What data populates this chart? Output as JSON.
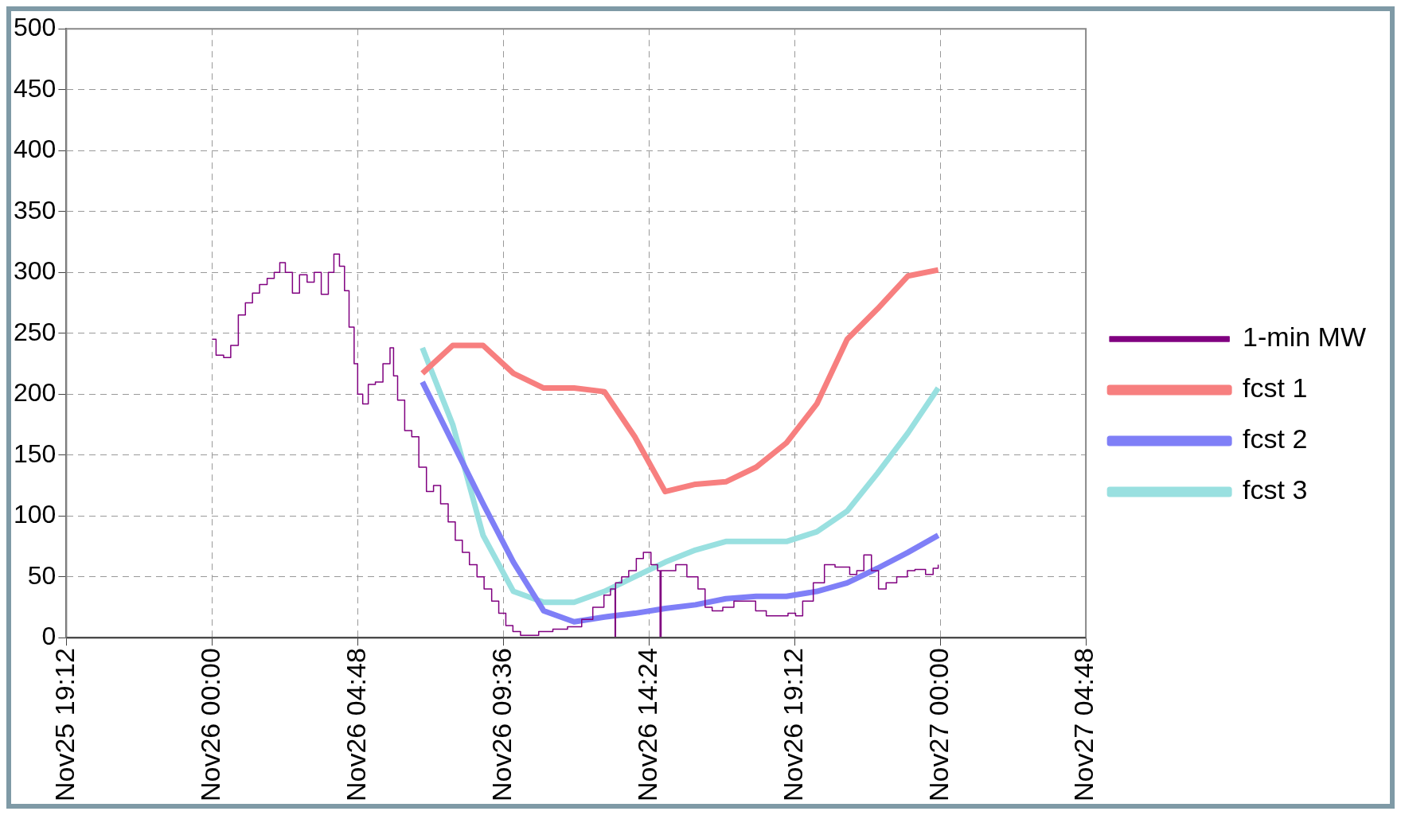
{
  "chart_data": {
    "type": "line",
    "xlim": [
      "--11-25T19:12",
      "--11-27T04:48"
    ],
    "xticks": [
      {
        "value": "--11-25T19:12",
        "label": "Nov25 19:12"
      },
      {
        "value": "--11-26T00:00",
        "label": "Nov26 00:00"
      },
      {
        "value": "--11-26T04:48",
        "label": "Nov26 04:48"
      },
      {
        "value": "--11-26T09:36",
        "label": "Nov26 09:36"
      },
      {
        "value": "--11-26T14:24",
        "label": "Nov26 14:24"
      },
      {
        "value": "--11-26T19:12",
        "label": "Nov26 19:12"
      },
      {
        "value": "--11-27T00:00",
        "label": "Nov27 00:00"
      },
      {
        "value": "--11-27T04:48",
        "label": "Nov27 04:48"
      }
    ],
    "ylim": [
      0,
      500
    ],
    "yticks": [
      0,
      50,
      100,
      150,
      200,
      250,
      300,
      350,
      400,
      450,
      500
    ],
    "grid": true,
    "legend": "right",
    "marker": "none",
    "series": [
      {
        "name": "1-min MW",
        "type": "step",
        "color": "#800080",
        "x": [
          "--11-26T00:00",
          "--11-26T00:08",
          "--11-26T00:23",
          "--11-26T00:37",
          "--11-26T00:52",
          "--11-26T01:06",
          "--11-26T01:20",
          "--11-26T01:34",
          "--11-26T01:49",
          "--11-26T02:03",
          "--11-26T02:14",
          "--11-26T02:25",
          "--11-26T02:39",
          "--11-26T02:53",
          "--11-26T03:08",
          "--11-26T03:22",
          "--11-26T03:36",
          "--11-26T03:50",
          "--11-26T04:01",
          "--11-26T04:12",
          "--11-26T04:22",
          "--11-26T04:31",
          "--11-26T04:41",
          "--11-26T04:48",
          "--11-26T04:58",
          "--11-26T05:09",
          "--11-26T05:23",
          "--11-26T05:38",
          "--11-26T05:52",
          "--11-26T05:59",
          "--11-26T06:07",
          "--11-26T06:21",
          "--11-26T06:35",
          "--11-26T06:49",
          "--11-26T07:04",
          "--11-26T07:18",
          "--11-26T07:32",
          "--11-26T07:47",
          "--11-26T08:01",
          "--11-26T08:15",
          "--11-26T08:29",
          "--11-26T08:44",
          "--11-26T08:58",
          "--11-26T09:13",
          "--11-26T09:27",
          "--11-26T09:41",
          "--11-26T09:55",
          "--11-26T10:10",
          "--11-26T10:31",
          "--11-26T10:46",
          "--11-26T11:14",
          "--11-26T11:43",
          "--11-26T12:11",
          "--11-26T12:33",
          "--11-26T12:55",
          "--11-26T13:08",
          "--11-26T13:17",
          "--11-26T13:18",
          "--11-26T13:30",
          "--11-26T13:44",
          "--11-26T13:59",
          "--11-26T14:13",
          "--11-26T14:28",
          "--11-26T14:41",
          "--11-26T14:46",
          "--11-26T14:48",
          "--11-26T14:56",
          "--11-26T15:17",
          "--11-26T15:39",
          "--11-26T16:01",
          "--11-26T16:15",
          "--11-26T16:29",
          "--11-26T16:50",
          "--11-26T17:12",
          "--11-26T17:34",
          "--11-26T17:55",
          "--11-26T18:16",
          "--11-26T18:38",
          "--11-26T18:59",
          "--11-26T19:14",
          "--11-26T19:28",
          "--11-26T19:49",
          "--11-26T20:11",
          "--11-26T20:32",
          "--11-26T20:47",
          "--11-26T21:01",
          "--11-26T21:15",
          "--11-26T21:29",
          "--11-26T21:44",
          "--11-26T21:58",
          "--11-26T22:13",
          "--11-26T22:34",
          "--11-26T22:55",
          "--11-26T23:10",
          "--11-26T23:31",
          "--11-26T23:46",
          "--11-26T23:56"
        ],
        "values": [
          245,
          232,
          230,
          240,
          265,
          275,
          283,
          290,
          295,
          300,
          308,
          300,
          283,
          298,
          292,
          300,
          282,
          300,
          315,
          305,
          285,
          255,
          225,
          200,
          192,
          208,
          210,
          225,
          238,
          215,
          195,
          170,
          165,
          140,
          120,
          125,
          110,
          95,
          80,
          70,
          60,
          50,
          40,
          30,
          20,
          10,
          5,
          2,
          2,
          5,
          7,
          9,
          15,
          25,
          35,
          40,
          0,
          45,
          50,
          55,
          65,
          70,
          60,
          55,
          0,
          55,
          55,
          60,
          50,
          40,
          25,
          22,
          25,
          30,
          30,
          22,
          18,
          18,
          20,
          18,
          30,
          45,
          60,
          58,
          58,
          52,
          55,
          68,
          55,
          40,
          45,
          50,
          55,
          56,
          52,
          57,
          60
        ]
      },
      {
        "name": "fcst 1",
        "color": "#f77f7f",
        "x": [
          "--11-26T06:56",
          "--11-26T07:56",
          "--11-26T08:56",
          "--11-26T09:56",
          "--11-26T10:56",
          "--11-26T11:56",
          "--11-26T12:56",
          "--11-26T13:56",
          "--11-26T14:56",
          "--11-26T15:56",
          "--11-26T16:56",
          "--11-26T17:56",
          "--11-26T18:56",
          "--11-26T19:56",
          "--11-26T20:56",
          "--11-26T21:56",
          "--11-26T22:56",
          "--11-26T23:56"
        ],
        "values": [
          217,
          240,
          240,
          217,
          205,
          205,
          202,
          165,
          120,
          126,
          128,
          140,
          160,
          192,
          245,
          270,
          297,
          302
        ]
      },
      {
        "name": "fcst 2",
        "color": "#7f7ff7",
        "x": [
          "--11-26T06:56",
          "--11-26T07:56",
          "--11-26T08:56",
          "--11-26T09:56",
          "--11-26T10:56",
          "--11-26T11:56",
          "--11-26T12:56",
          "--11-26T13:56",
          "--11-26T14:56",
          "--11-26T15:56",
          "--11-26T16:56",
          "--11-26T17:56",
          "--11-26T18:56",
          "--11-26T19:56",
          "--11-26T20:56",
          "--11-26T21:56",
          "--11-26T22:56",
          "--11-26T23:56"
        ],
        "values": [
          210,
          160,
          110,
          62,
          22,
          13,
          17,
          20,
          24,
          27,
          32,
          34,
          34,
          38,
          45,
          57,
          70,
          84
        ]
      },
      {
        "name": "fcst 3",
        "color": "#99e0e0",
        "x": [
          "--11-26T06:56",
          "--11-26T07:56",
          "--11-26T08:56",
          "--11-26T09:56",
          "--11-26T10:56",
          "--11-26T11:56",
          "--11-26T12:56",
          "--11-26T13:56",
          "--11-26T14:56",
          "--11-26T15:56",
          "--11-26T16:56",
          "--11-26T17:56",
          "--11-26T18:56",
          "--11-26T19:56",
          "--11-26T20:56",
          "--11-26T21:56",
          "--11-26T22:56",
          "--11-26T23:56"
        ],
        "values": [
          238,
          175,
          84,
          38,
          29,
          29,
          38,
          50,
          62,
          72,
          79,
          79,
          79,
          87,
          104,
          135,
          168,
          205
        ]
      }
    ]
  }
}
